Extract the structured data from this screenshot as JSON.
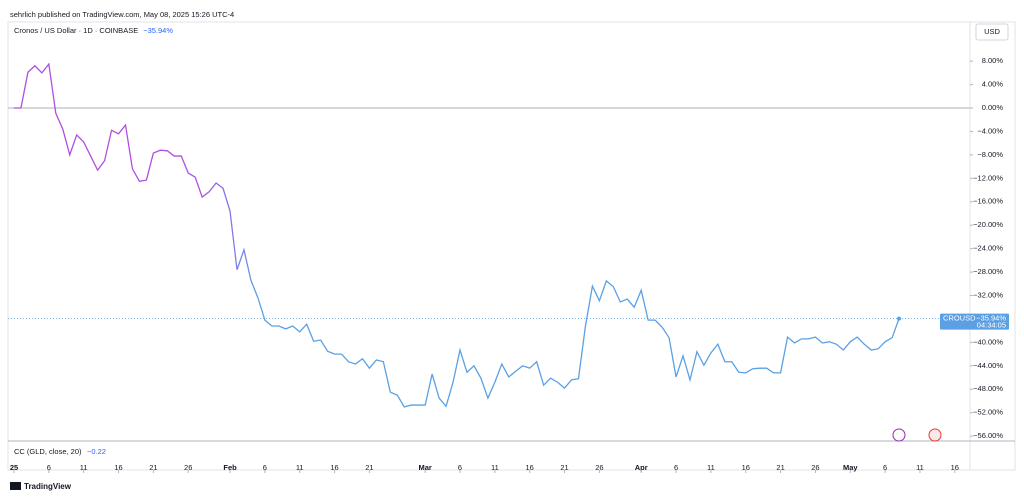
{
  "header": {
    "published": "sehrlich published on TradingView.com, May 08, 2025 15:26 UTC-4"
  },
  "chart_data": {
    "type": "line",
    "title": "Cronos / US Dollar · 1D · COINBASE",
    "change_label": "−35.94%",
    "currency": "USD",
    "symbol": "CROUSD",
    "last_label": "−35.94%",
    "countdown": "04:34:05",
    "zero_line": true,
    "colors": [
      "#b04ee2",
      "#5ba0e4"
    ],
    "x": [
      0,
      1,
      2,
      3,
      4,
      5,
      6,
      7,
      8,
      9,
      10,
      11,
      12,
      13,
      14,
      15,
      16,
      17,
      18,
      19,
      20,
      21,
      22,
      23,
      24,
      25,
      26,
      27,
      28,
      29,
      30,
      31,
      32,
      33,
      34,
      35,
      36,
      37,
      38,
      39,
      40,
      41,
      42,
      43,
      44,
      45,
      46,
      47,
      48,
      49,
      50,
      51,
      52,
      53,
      54,
      55,
      56,
      57,
      58,
      59,
      60,
      61,
      62,
      63,
      64,
      65,
      66,
      67,
      68,
      69,
      70,
      71,
      72,
      73,
      74,
      75,
      76,
      77,
      78,
      79,
      80,
      81,
      82,
      83,
      84,
      85,
      86,
      87,
      88,
      89,
      90,
      91,
      92,
      93,
      94,
      95,
      96,
      97,
      98,
      99,
      100,
      101,
      102,
      103,
      104,
      105,
      106,
      107,
      108,
      109,
      110,
      111,
      112,
      113,
      114,
      115,
      116,
      117,
      118,
      119,
      120,
      121,
      122,
      123,
      124,
      125,
      126,
      127
    ],
    "values": [
      0,
      0,
      6.1,
      7.2,
      6.0,
      7.5,
      -0.9,
      -3.6,
      -8.0,
      -4.6,
      -5.8,
      -8.2,
      -10.6,
      -9.0,
      -3.8,
      -4.4,
      -2.9,
      -10.4,
      -12.5,
      -12.3,
      -7.7,
      -7.2,
      -7.3,
      -8.2,
      -8.2,
      -11.1,
      -11.8,
      -15.2,
      -14.3,
      -12.8,
      -13.7,
      -17.6,
      -27.6,
      -24.2,
      -29.4,
      -32.4,
      -36.2,
      -37.2,
      -37.2,
      -37.7,
      -37.2,
      -38.2,
      -36.9,
      -39.8,
      -39.6,
      -41.5,
      -42.0,
      -42.0,
      -43.3,
      -43.7,
      -42.8,
      -44.4,
      -43.0,
      -43.3,
      -48.5,
      -49.0,
      -51.0,
      -50.7,
      -50.7,
      -50.7,
      -45.4,
      -49.5,
      -50.9,
      -46.8,
      -41.3,
      -45.1,
      -44.0,
      -46.1,
      -49.5,
      -46.8,
      -43.7,
      -45.9,
      -44.9,
      -44.0,
      -44.4,
      -43.3,
      -47.3,
      -46.1,
      -46.8,
      -47.8,
      -46.4,
      -46.2,
      -37.2,
      -30.4,
      -32.9,
      -29.5,
      -30.5,
      -33.1,
      -32.6,
      -34.0,
      -31.1,
      -36.2,
      -36.2,
      -37.4,
      -39.2,
      -45.9,
      -42.3,
      -46.4,
      -41.6,
      -43.9,
      -41.8,
      -40.3,
      -43.3,
      -43.3,
      -45.1,
      -45.2,
      -44.5,
      -44.4,
      -44.4,
      -45.2,
      -45.2,
      -39.1,
      -40.1,
      -39.4,
      -39.4,
      -39.1,
      -40.1,
      -39.9,
      -40.3,
      -41.3,
      -39.9,
      -39.1,
      -40.3,
      -41.3,
      -41.1,
      -39.9,
      -39.2,
      -35.94
    ],
    "xlim": [
      -0.86,
      137.18
    ],
    "xticks": [
      {
        "value": 0,
        "label": "25"
      },
      {
        "value": 5,
        "label": "6"
      },
      {
        "value": 10,
        "label": "11"
      },
      {
        "value": 15,
        "label": "16"
      },
      {
        "value": 20,
        "label": "21"
      },
      {
        "value": 25,
        "label": "26"
      },
      {
        "value": 31,
        "label": "Feb"
      },
      {
        "value": 36,
        "label": "6"
      },
      {
        "value": 41,
        "label": "11"
      },
      {
        "value": 46,
        "label": "16"
      },
      {
        "value": 51,
        "label": "21"
      },
      {
        "value": 59,
        "label": "Mar"
      },
      {
        "value": 64,
        "label": "6"
      },
      {
        "value": 69,
        "label": "11"
      },
      {
        "value": 74,
        "label": "16"
      },
      {
        "value": 79,
        "label": "21"
      },
      {
        "value": 84,
        "label": "26"
      },
      {
        "value": 90,
        "label": "Apr"
      },
      {
        "value": 95,
        "label": "6"
      },
      {
        "value": 100,
        "label": "11"
      },
      {
        "value": 105,
        "label": "16"
      },
      {
        "value": 110,
        "label": "21"
      },
      {
        "value": 115,
        "label": "26"
      },
      {
        "value": 120,
        "label": "May"
      },
      {
        "value": 125,
        "label": "6"
      },
      {
        "value": 130,
        "label": "11"
      },
      {
        "value": 135,
        "label": "16"
      }
    ],
    "ylim": [
      -56.83,
      14.68
    ],
    "yticks": [
      {
        "value": 8,
        "label": "8.00%"
      },
      {
        "value": 4,
        "label": "4.00%"
      },
      {
        "value": 0,
        "label": "0.00%"
      },
      {
        "value": -4,
        "label": "−4.00%"
      },
      {
        "value": -8,
        "label": "−8.00%"
      },
      {
        "value": -12,
        "label": "−12.00%"
      },
      {
        "value": -16,
        "label": "−16.00%"
      },
      {
        "value": -20,
        "label": "−20.00%"
      },
      {
        "value": -24,
        "label": "−24.00%"
      },
      {
        "value": -28,
        "label": "−28.00%"
      },
      {
        "value": -32,
        "label": "−32.00%"
      },
      {
        "value": -36,
        "label": "−36.00%"
      },
      {
        "value": -40,
        "label": "−40.00%"
      },
      {
        "value": -44,
        "label": "−44.00%"
      },
      {
        "value": -48,
        "label": "−48.00%"
      },
      {
        "value": -52,
        "label": "−52.00%"
      },
      {
        "value": -56,
        "label": "−56.00%"
      }
    ]
  },
  "indicator": {
    "name": "CC (GLD, close, 20)",
    "value_label": "−0.22"
  },
  "footer": {
    "logo": "TradingView"
  }
}
